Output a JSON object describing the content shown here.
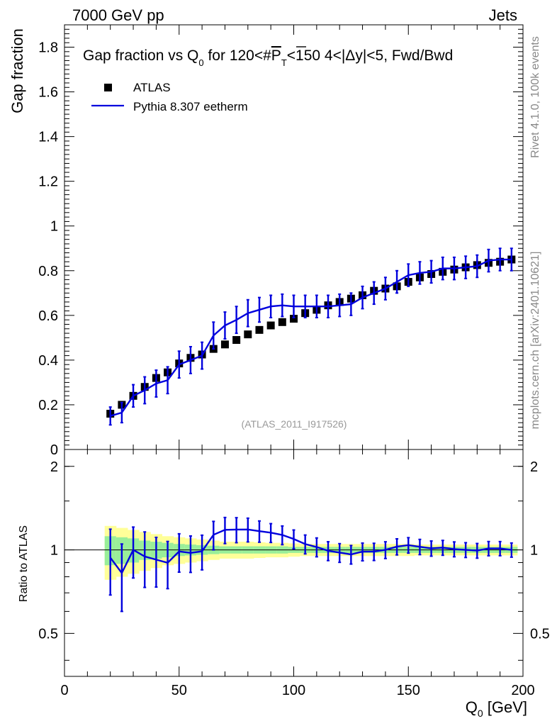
{
  "header": {
    "left": "7000 GeV pp",
    "right": "Jets"
  },
  "side_labels": {
    "rivet": "Rivet 4.1.0,  100k events",
    "mcplots": "mcplots.cern.ch [arXiv:2401.10621]"
  },
  "colors": {
    "mc": "#0000dd",
    "data": "#000000",
    "band_inner": "#99ee99",
    "band_outer": "#ffff99"
  },
  "chart_data": {
    "type": "line",
    "title": {
      "pre": "Gap fraction vs Q",
      "sub": "0",
      "post": " for 120<#",
      "p": "P",
      "psub": "T",
      "tail": "<150  4<|Δy|<5, Fwd/Bwd"
    },
    "xlabel": {
      "main": "Q",
      "sub": "0",
      "unit": " [GeV]"
    },
    "ylabel": "Gap fraction",
    "ratio_ylabel": "Ratio to ATLAS",
    "watermark": "(ATLAS_2011_I917526)",
    "xlim": [
      0,
      200
    ],
    "ylim": [
      0,
      1.9
    ],
    "ratio_ylim": [
      0.35,
      2.3
    ],
    "x_ticks": [
      "0",
      "50",
      "100",
      "150",
      "200"
    ],
    "y_ticks": [
      "0",
      "0.2",
      "0.4",
      "0.6",
      "0.8",
      "1",
      "1.2",
      "1.4",
      "1.6",
      "1.8"
    ],
    "ratio_ticks": [
      "0.5",
      "1",
      "2"
    ],
    "legend": {
      "data": "ATLAS",
      "mc": "Pythia 8.307 eetherm"
    },
    "x": [
      20,
      25,
      30,
      35,
      40,
      45,
      50,
      55,
      60,
      65,
      70,
      75,
      80,
      85,
      90,
      95,
      100,
      105,
      110,
      115,
      120,
      125,
      130,
      135,
      140,
      145,
      150,
      155,
      160,
      165,
      170,
      175,
      180,
      185,
      190,
      195
    ],
    "series": [
      {
        "name": "ATLAS",
        "values": [
          0.16,
          0.2,
          0.24,
          0.28,
          0.32,
          0.345,
          0.385,
          0.41,
          0.425,
          0.45,
          0.47,
          0.49,
          0.515,
          0.535,
          0.555,
          0.57,
          0.585,
          0.61,
          0.625,
          0.645,
          0.66,
          0.675,
          0.69,
          0.71,
          0.72,
          0.73,
          0.75,
          0.77,
          0.785,
          0.795,
          0.805,
          0.815,
          0.825,
          0.835,
          0.84,
          0.85
        ]
      },
      {
        "name": "Pythia 8.307 eetherm",
        "values": [
          0.15,
          0.165,
          0.24,
          0.265,
          0.295,
          0.31,
          0.38,
          0.4,
          0.42,
          0.51,
          0.555,
          0.58,
          0.61,
          0.625,
          0.64,
          0.645,
          0.64,
          0.64,
          0.64,
          0.64,
          0.645,
          0.65,
          0.68,
          0.7,
          0.72,
          0.75,
          0.78,
          0.79,
          0.795,
          0.81,
          0.81,
          0.815,
          0.82,
          0.845,
          0.85,
          0.85
        ],
        "errors": [
          0.04,
          0.045,
          0.05,
          0.06,
          0.06,
          0.06,
          0.06,
          0.06,
          0.06,
          0.06,
          0.06,
          0.06,
          0.06,
          0.055,
          0.05,
          0.05,
          0.05,
          0.05,
          0.05,
          0.05,
          0.05,
          0.05,
          0.05,
          0.05,
          0.05,
          0.05,
          0.05,
          0.05,
          0.05,
          0.05,
          0.05,
          0.05,
          0.05,
          0.05,
          0.05,
          0.05
        ]
      }
    ],
    "ratio_band_inner": [
      0.12,
      0.11,
      0.1,
      0.08,
      0.07,
      0.06,
      0.05,
      0.045,
      0.04,
      0.035,
      0.03,
      0.03,
      0.03,
      0.03,
      0.03,
      0.03,
      0.025,
      0.025,
      0.025,
      0.025,
      0.025,
      0.025,
      0.025,
      0.025,
      0.025,
      0.025,
      0.025,
      0.025,
      0.025,
      0.025,
      0.025,
      0.025,
      0.025,
      0.025,
      0.025,
      0.025
    ],
    "ratio_band_outer": [
      0.22,
      0.2,
      0.18,
      0.16,
      0.14,
      0.12,
      0.11,
      0.1,
      0.09,
      0.08,
      0.07,
      0.07,
      0.07,
      0.065,
      0.06,
      0.06,
      0.055,
      0.05,
      0.05,
      0.05,
      0.05,
      0.05,
      0.05,
      0.05,
      0.05,
      0.05,
      0.05,
      0.045,
      0.045,
      0.045,
      0.045,
      0.045,
      0.045,
      0.045,
      0.045,
      0.045
    ]
  }
}
